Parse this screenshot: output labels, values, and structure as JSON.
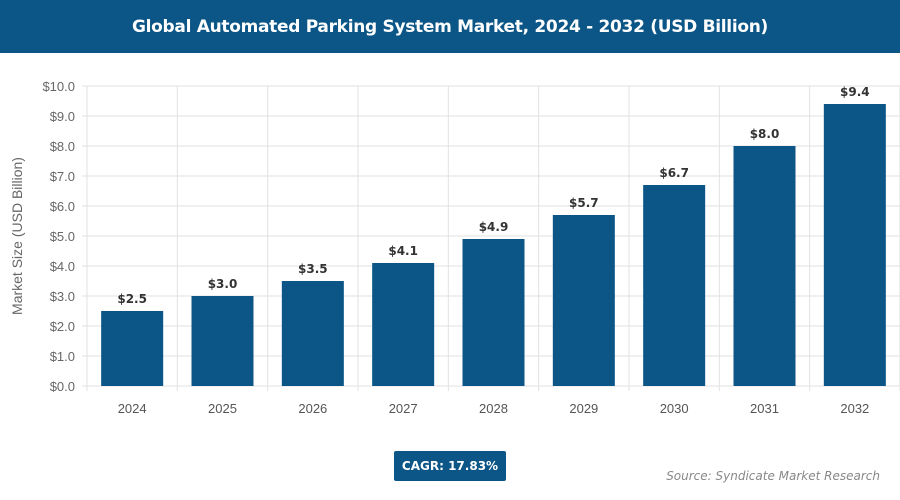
{
  "chart_data": {
    "type": "bar",
    "title": "Global Automated Parking System Market, 2024 - 2032 (USD Billion)",
    "ylabel": "Market Size (USD Billion)",
    "xlabel": "",
    "categories": [
      "2024",
      "2025",
      "2026",
      "2027",
      "2028",
      "2029",
      "2030",
      "2031",
      "2032"
    ],
    "values": [
      2.5,
      3.0,
      3.5,
      4.1,
      4.9,
      5.7,
      6.7,
      8.0,
      9.4
    ],
    "data_labels": [
      "$2.5",
      "$3.0",
      "$3.5",
      "$4.1",
      "$4.9",
      "$5.7",
      "$6.7",
      "$8.0",
      "$9.4"
    ],
    "ylim": [
      0,
      10
    ],
    "yticks": [
      "$0.0",
      "$1.0",
      "$2.0",
      "$3.0",
      "$4.0",
      "$5.0",
      "$6.0",
      "$7.0",
      "$8.0",
      "$9.0",
      "$10.0"
    ],
    "grid": true,
    "bar_color": "#0b5686"
  },
  "cagr": "CAGR: 17.83%",
  "source": "Source: Syndicate Market Research"
}
